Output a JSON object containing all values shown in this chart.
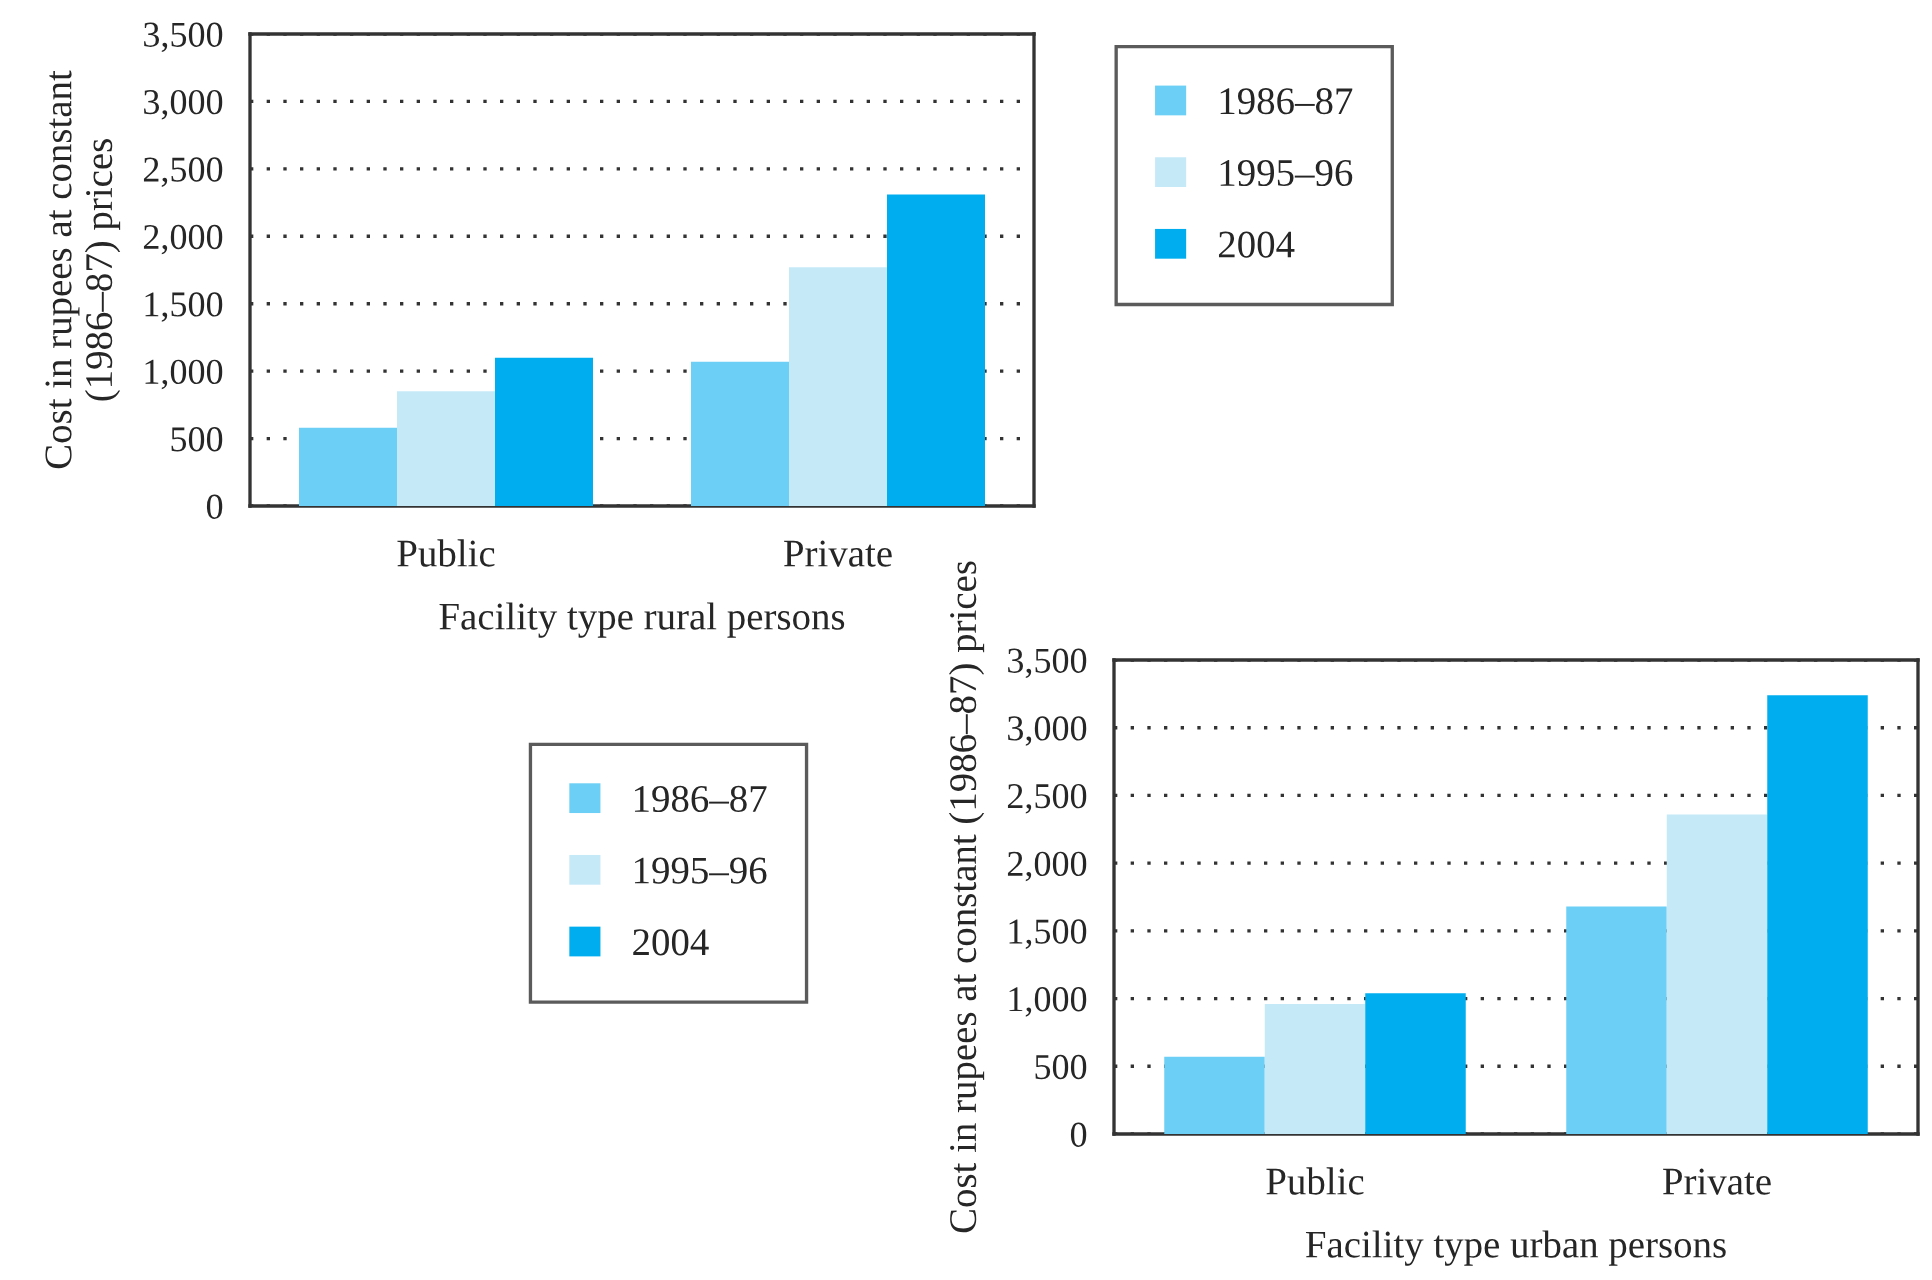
{
  "chart_data": [
    {
      "type": "bar",
      "categories": [
        "Public",
        "Private"
      ],
      "xlabel": "Facility type rural persons",
      "ylabel": "Cost in rupees at constant (1986–87) prices",
      "ylim": [
        0,
        3500
      ],
      "yticks": [
        0,
        {
          "value": 500,
          "label": "500"
        },
        {
          "value": 1000,
          "label": "1,000"
        },
        {
          "value": 1500,
          "label": "1,500"
        },
        {
          "value": 2000,
          "label": "2,000"
        },
        {
          "value": 2500,
          "label": "2,500"
        },
        {
          "value": 3000,
          "label": "3,000"
        },
        {
          "value": 3500,
          "label": "3,500"
        }
      ],
      "grid": "y",
      "legend": "right",
      "series": [
        {
          "name": "1986–87",
          "color": "#6ccff6",
          "values": [
            580,
            1070
          ]
        },
        {
          "name": "1995–96",
          "color": "#c6e9f8",
          "values": [
            850,
            1770
          ]
        },
        {
          "name": "2004",
          "color": "#00aeef",
          "values": [
            1100,
            2310
          ]
        }
      ]
    },
    {
      "type": "bar",
      "categories": [
        "Public",
        "Private"
      ],
      "xlabel": "Facility type urban persons",
      "ylabel": "Cost in rupees at constant (1986–87) prices",
      "ylim": [
        0,
        3500
      ],
      "yticks": [
        0,
        {
          "value": 500,
          "label": "500"
        },
        {
          "value": 1000,
          "label": "1,000"
        },
        {
          "value": 1500,
          "label": "1,500"
        },
        {
          "value": 2000,
          "label": "2,000"
        },
        {
          "value": 2500,
          "label": "2,500"
        },
        {
          "value": 3000,
          "label": "3,000"
        },
        {
          "value": 3500,
          "label": "3,500"
        }
      ],
      "grid": "y",
      "legend": "left",
      "series": [
        {
          "name": "1986–87",
          "color": "#6ccff6",
          "values": [
            570,
            1680
          ]
        },
        {
          "name": "1995–96",
          "color": "#c6e9f8",
          "values": [
            960,
            2360
          ]
        },
        {
          "name": "2004",
          "color": "#00aeef",
          "values": [
            1040,
            3240
          ]
        }
      ]
    }
  ]
}
